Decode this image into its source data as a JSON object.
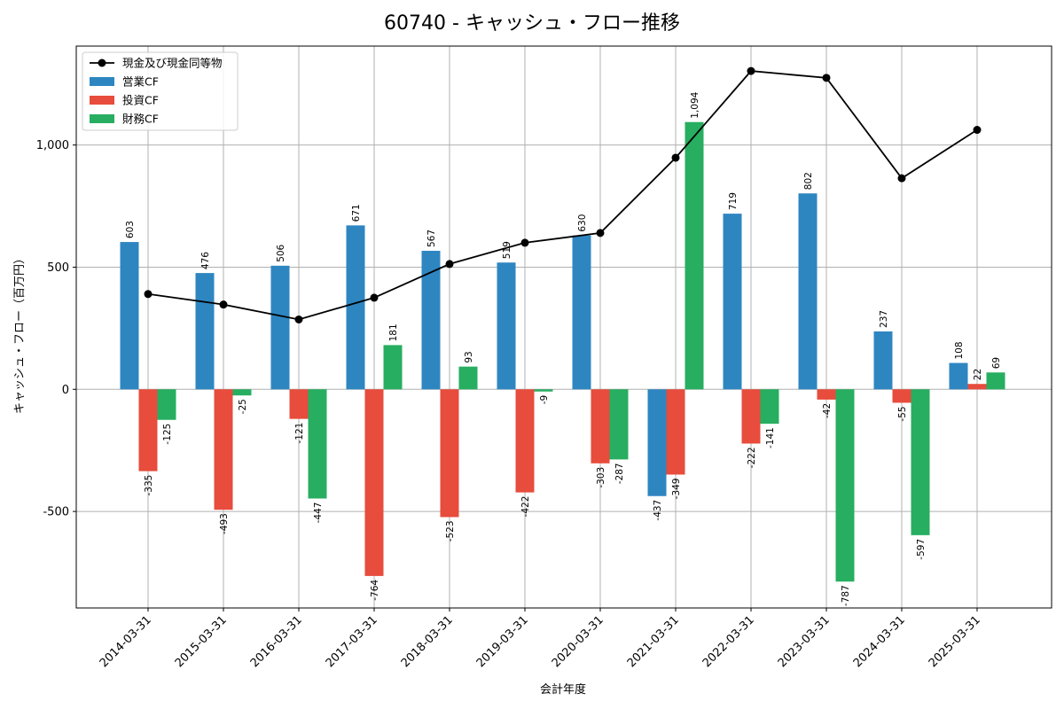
{
  "chart_data": {
    "type": "bar",
    "title": "60740 - キャッシュ・フロー推移",
    "xlabel": "会計年度",
    "ylabel": "キャッシュ・フロー（百万円）",
    "categories": [
      "2014-03-31",
      "2015-03-31",
      "2016-03-31",
      "2017-03-31",
      "2018-03-31",
      "2019-03-31",
      "2020-03-31",
      "2021-03-31",
      "2022-03-31",
      "2023-03-31",
      "2024-03-31",
      "2025-03-31"
    ],
    "ylim": [
      -895,
      1405
    ],
    "yticks": [
      -500,
      0,
      500,
      1000
    ],
    "ytick_labels": [
      "-500",
      "0",
      "500",
      "1,000"
    ],
    "grid": true,
    "legend_position": "top-left",
    "series": [
      {
        "name": "現金及び現金同等物",
        "type": "line",
        "color": "#000000",
        "values": [
          390,
          347,
          286,
          375,
          513,
          600,
          640,
          948,
          1303,
          1275,
          864,
          1062
        ],
        "labels": []
      },
      {
        "name": "営業CF",
        "type": "bar",
        "color": "#2e86c1",
        "values": [
          603,
          476,
          506,
          671,
          567,
          519,
          630,
          -437,
          719,
          802,
          237,
          108
        ],
        "labels": [
          "603",
          "476",
          "506",
          "671",
          "567",
          "519",
          "630",
          "-437",
          "719",
          "802",
          "237",
          "108"
        ]
      },
      {
        "name": "投資CF",
        "type": "bar",
        "color": "#e74c3c",
        "values": [
          -335,
          -493,
          -121,
          -764,
          -523,
          -422,
          -303,
          -349,
          -222,
          -42,
          -55,
          22
        ],
        "labels": [
          "-335",
          "-493",
          "-121",
          "-764",
          "-523",
          "-422",
          "-303",
          "-349",
          "-222",
          "-42",
          "-55",
          "22"
        ]
      },
      {
        "name": "財務CF",
        "type": "bar",
        "color": "#27ae60",
        "values": [
          -125,
          -25,
          -447,
          181,
          93,
          -9,
          -287,
          1094,
          -141,
          -787,
          -597,
          69
        ],
        "labels": [
          "-125",
          "-25",
          "-447",
          "181",
          "93",
          "-9",
          "-287",
          "1,094",
          "-141",
          "-787",
          "-597",
          "69"
        ]
      }
    ]
  }
}
